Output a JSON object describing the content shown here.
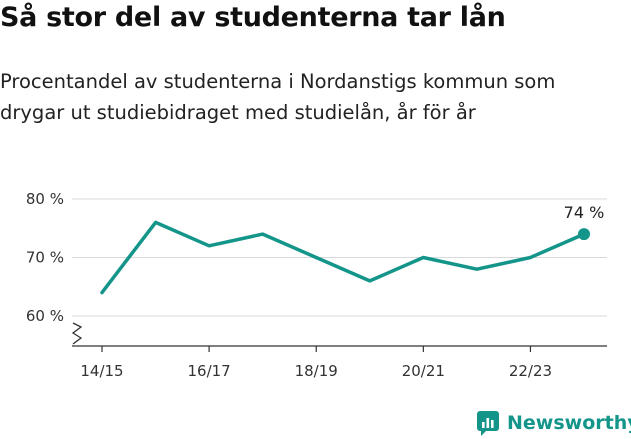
{
  "header": {
    "title": "Så stor del av studenterna tar lån",
    "subtitle_lines": [
      "Procentandel av studenterna i Nordanstigs kommun som",
      "drygar ut studiebidraget med studielån, år för år"
    ]
  },
  "brand": {
    "name": "Newsworthy",
    "icon": "newsworthy-logo-icon"
  },
  "colors": {
    "line": "#14958a",
    "grid": "#d9d9d9",
    "axis": "#333333"
  },
  "chart_data": {
    "type": "line",
    "x_ticks": [
      "14/15",
      "16/17",
      "18/19",
      "20/21",
      "22/23"
    ],
    "y_ticks": [
      "60 %",
      "70 %",
      "80 %"
    ],
    "y_tick_values": [
      60,
      70,
      80
    ],
    "ylim": [
      60,
      80
    ],
    "y_axis_broken": true,
    "grid": "horizontal",
    "series": [
      {
        "x": [
          "14/15",
          "15/16",
          "16/17",
          "17/18",
          "18/19",
          "19/20",
          "20/21",
          "21/22",
          "22/23",
          "23/24"
        ],
        "values": [
          64,
          76,
          72,
          74,
          70,
          66,
          70,
          68,
          70,
          74
        ]
      }
    ],
    "annotation": {
      "text": "74 %",
      "x": "23/24",
      "value": 74
    }
  }
}
